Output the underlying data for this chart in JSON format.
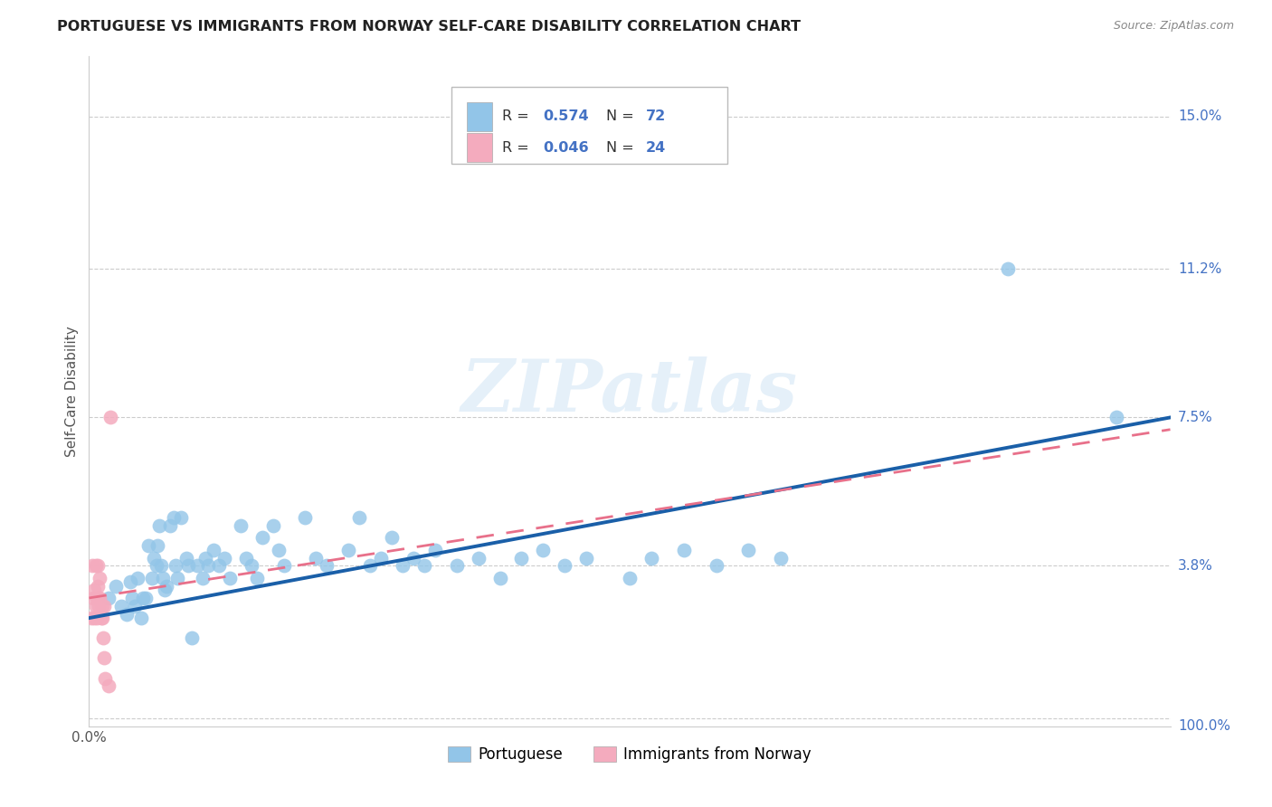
{
  "title": "PORTUGUESE VS IMMIGRANTS FROM NORWAY SELF-CARE DISABILITY CORRELATION CHART",
  "source": "Source: ZipAtlas.com",
  "ylabel": "Self-Care Disability",
  "watermark": "ZIPatlas",
  "xlim": [
    0.0,
    1.0
  ],
  "ylim": [
    -0.002,
    0.165
  ],
  "yticks": [
    0.0,
    0.038,
    0.075,
    0.112,
    0.15
  ],
  "ytick_labels": [
    "",
    "3.8%",
    "7.5%",
    "11.2%",
    "15.0%"
  ],
  "xtick_label_left": "0.0%",
  "xtick_label_right": "100.0%",
  "color_blue": "#92C5E8",
  "color_pink": "#F4ABBE",
  "color_blue_line": "#1A5FA8",
  "color_pink_line": "#E8708A",
  "color_grid": "#CCCCCC",
  "color_title": "#222222",
  "color_right_labels": "#4472C4",
  "R1": "0.574",
  "N1": "72",
  "R2": "0.046",
  "N2": "24",
  "blue_x": [
    0.018,
    0.025,
    0.03,
    0.035,
    0.038,
    0.04,
    0.042,
    0.045,
    0.048,
    0.05,
    0.052,
    0.055,
    0.058,
    0.06,
    0.062,
    0.063,
    0.065,
    0.067,
    0.068,
    0.07,
    0.072,
    0.075,
    0.078,
    0.08,
    0.082,
    0.085,
    0.09,
    0.092,
    0.095,
    0.1,
    0.105,
    0.108,
    0.11,
    0.115,
    0.12,
    0.125,
    0.13,
    0.14,
    0.145,
    0.15,
    0.155,
    0.16,
    0.17,
    0.175,
    0.18,
    0.2,
    0.21,
    0.22,
    0.24,
    0.25,
    0.26,
    0.27,
    0.28,
    0.29,
    0.3,
    0.31,
    0.32,
    0.34,
    0.36,
    0.38,
    0.4,
    0.42,
    0.44,
    0.46,
    0.5,
    0.52,
    0.55,
    0.58,
    0.61,
    0.64,
    0.85,
    0.95
  ],
  "blue_y": [
    0.03,
    0.033,
    0.028,
    0.026,
    0.034,
    0.03,
    0.028,
    0.035,
    0.025,
    0.03,
    0.03,
    0.043,
    0.035,
    0.04,
    0.038,
    0.043,
    0.048,
    0.038,
    0.035,
    0.032,
    0.033,
    0.048,
    0.05,
    0.038,
    0.035,
    0.05,
    0.04,
    0.038,
    0.02,
    0.038,
    0.035,
    0.04,
    0.038,
    0.042,
    0.038,
    0.04,
    0.035,
    0.048,
    0.04,
    0.038,
    0.035,
    0.045,
    0.048,
    0.042,
    0.038,
    0.05,
    0.04,
    0.038,
    0.042,
    0.05,
    0.038,
    0.04,
    0.045,
    0.038,
    0.04,
    0.038,
    0.042,
    0.038,
    0.04,
    0.035,
    0.04,
    0.042,
    0.038,
    0.04,
    0.035,
    0.04,
    0.042,
    0.038,
    0.042,
    0.04,
    0.112,
    0.075
  ],
  "pink_x": [
    0.002,
    0.003,
    0.004,
    0.005,
    0.005,
    0.006,
    0.006,
    0.007,
    0.007,
    0.008,
    0.008,
    0.009,
    0.009,
    0.01,
    0.01,
    0.011,
    0.012,
    0.012,
    0.013,
    0.014,
    0.014,
    0.015,
    0.018,
    0.02
  ],
  "pink_y": [
    0.025,
    0.038,
    0.03,
    0.025,
    0.032,
    0.028,
    0.038,
    0.03,
    0.025,
    0.033,
    0.038,
    0.028,
    0.03,
    0.035,
    0.03,
    0.025,
    0.028,
    0.025,
    0.02,
    0.028,
    0.015,
    0.01,
    0.008,
    0.075
  ],
  "legend_label_1": "Portuguese",
  "legend_label_2": "Immigrants from Norway"
}
